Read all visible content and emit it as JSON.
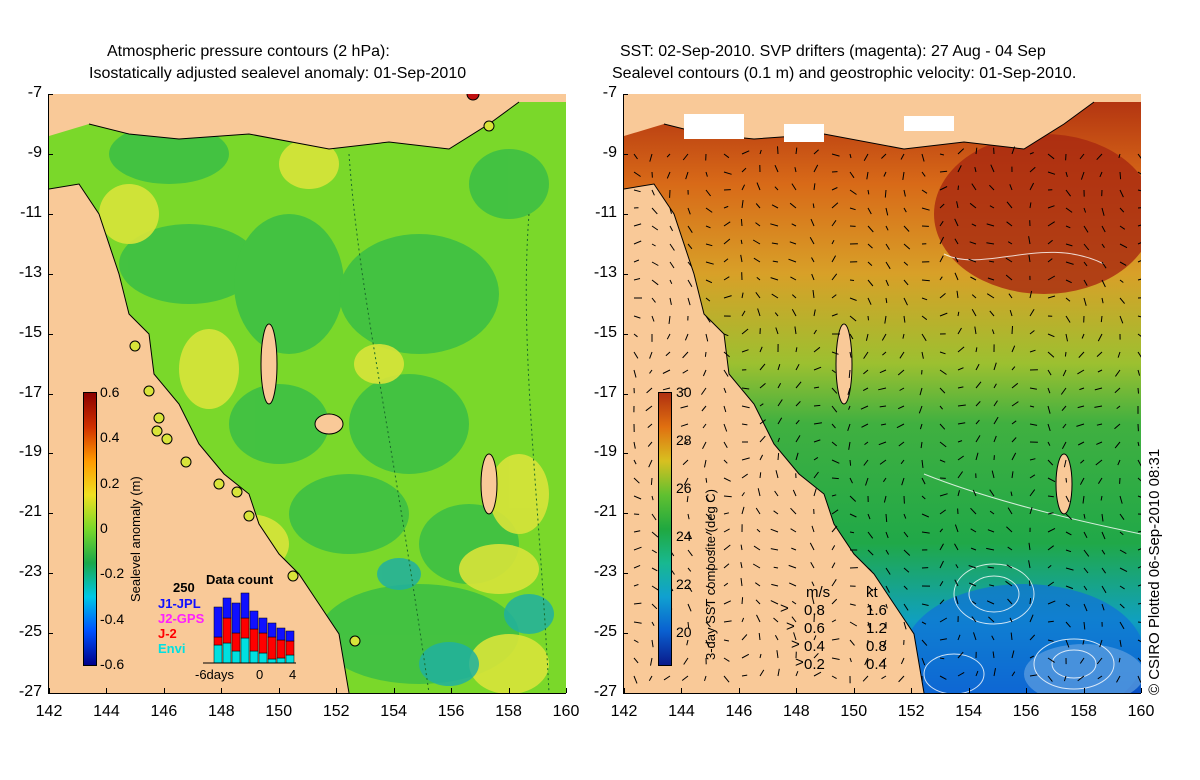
{
  "left_panel": {
    "title_line1": "Atmospheric pressure contours (2 hPa):",
    "title_line2": "Isostatically adjusted sealevel anomaly: 01-Sep-2010",
    "colorbar_label": "Sealevel anomaly (m)",
    "colorbar_ticks": [
      "0.6",
      "0.4",
      "0.2",
      "0",
      "-0.2",
      "-0.4",
      "-0.6"
    ],
    "colors": [
      "#00008a",
      "#0050ff",
      "#00c8e6",
      "#1aa84a",
      "#7ad82a",
      "#f0e020",
      "#ff9a00",
      "#d03000",
      "#8a0000"
    ],
    "data_count": {
      "title": "Data count",
      "max_label": "250",
      "legend": [
        {
          "label": "J1-JPL",
          "color": "#1010ff"
        },
        {
          "label": "J2-GPS",
          "color": "#ff20ff"
        },
        {
          "label": "J-2",
          "color": "#ff0000"
        },
        {
          "label": "Envi",
          "color": "#00e0e0"
        }
      ],
      "xlabels": [
        "-6days",
        "0",
        "4"
      ]
    }
  },
  "right_panel": {
    "title_line1": "SST: 02-Sep-2010. SVP drifters (magenta): 27 Aug - 04 Sep",
    "title_line2": "Sealevel contours (0.1 m) and geostrophic velocity: 01-Sep-2010.",
    "colorbar_label": "3-day SST composite (deg C)",
    "colorbar_ticks": [
      "30",
      "28",
      "26",
      "24",
      "22",
      "20"
    ],
    "colors": [
      "#0a1a8a",
      "#0a60d0",
      "#10a0d0",
      "#18b890",
      "#20a840",
      "#60c030",
      "#d8c020",
      "#e07010",
      "#b03010"
    ],
    "velocity_legend": {
      "header_ms": "m/s",
      "header_kt": "kt",
      "rows": [
        {
          "ms": "0.8",
          "kt": "1.6"
        },
        {
          "ms": "0.6",
          "kt": "1.2"
        },
        {
          "ms": "0.4",
          "kt": "0.8"
        },
        {
          "ms": "0.2",
          "kt": "0.4"
        }
      ]
    }
  },
  "y_ticks": [
    "-7",
    "-9",
    "-11",
    "-13",
    "-15",
    "-17",
    "-19",
    "-21",
    "-23",
    "-25",
    "-27"
  ],
  "x_ticks": [
    "142",
    "144",
    "146",
    "148",
    "150",
    "152",
    "154",
    "156",
    "158",
    "160"
  ],
  "credit": "© CSIRO Plotted 06-Sep-2010 08:31",
  "land_color": "#f9c998"
}
